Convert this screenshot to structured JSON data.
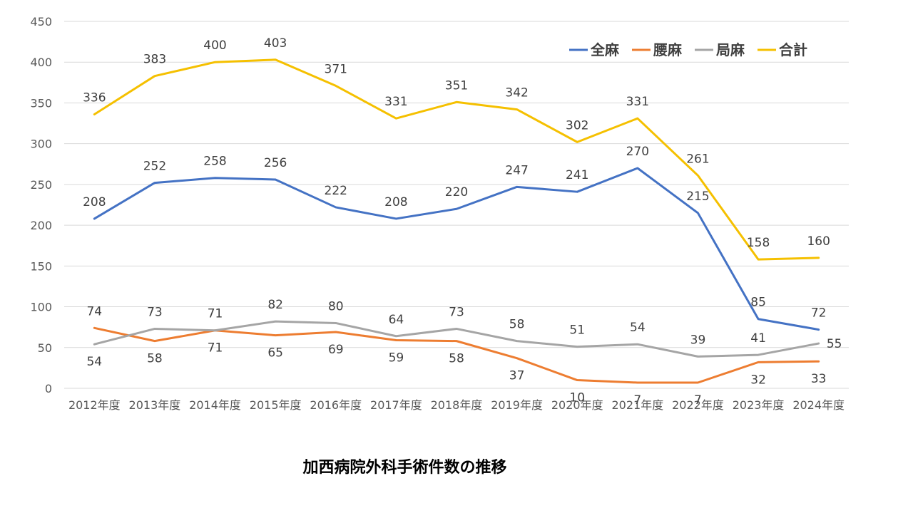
{
  "chart_data": {
    "type": "line",
    "title": "加西病院外科手術件数の推移",
    "categories": [
      "2012年度",
      "2013年度",
      "2014年度",
      "2015年度",
      "2016年度",
      "2017年度",
      "2018年度",
      "2019年度",
      "2020年度",
      "2021年度",
      "2022年度",
      "2023年度",
      "2024年度"
    ],
    "ylim": [
      0,
      450
    ],
    "yticks": [
      0,
      50,
      100,
      150,
      200,
      250,
      300,
      350,
      400,
      450
    ],
    "grid": true,
    "legend_position": "top-right",
    "series": [
      {
        "name": "全麻",
        "color": "#4472C4",
        "values": [
          208,
          252,
          258,
          256,
          222,
          208,
          220,
          247,
          241,
          270,
          215,
          85,
          72
        ]
      },
      {
        "name": "腰麻",
        "color": "#ED7D31",
        "values": [
          74,
          58,
          71,
          65,
          69,
          59,
          58,
          37,
          10,
          7,
          7,
          32,
          33
        ]
      },
      {
        "name": "局麻",
        "color": "#A5A5A5",
        "values": [
          54,
          73,
          71,
          82,
          80,
          64,
          73,
          58,
          51,
          54,
          39,
          41,
          55
        ]
      },
      {
        "name": "合計",
        "color": "#F5C000",
        "values": [
          336,
          383,
          400,
          403,
          371,
          331,
          351,
          342,
          302,
          331,
          261,
          158,
          160
        ]
      }
    ]
  }
}
